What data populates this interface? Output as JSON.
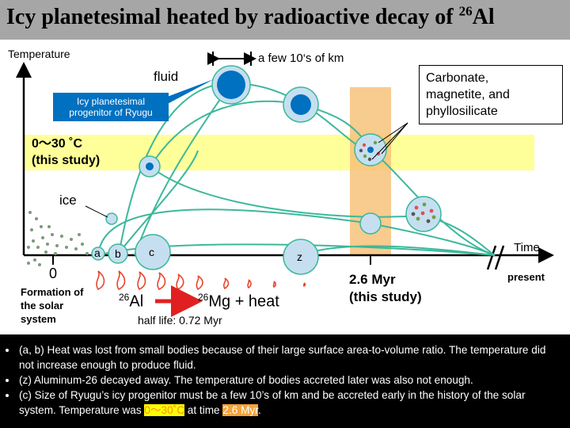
{
  "title": {
    "prefix": "Icy planetesimal heated by radioactive decay of ",
    "isotope_mass": "26",
    "isotope_symbol": "Al"
  },
  "axes": {
    "y_label": "Temperature",
    "x_label": "Time",
    "origin_label": "0",
    "origin_caption_line1": "Formation of",
    "origin_caption_line2": "the solar",
    "origin_caption_line3": "system",
    "present_label": "present",
    "time_marker_line1": "2.6 Myr",
    "time_marker_line2": "(this study)"
  },
  "labels": {
    "fluid": "fluid",
    "ice": "ice",
    "size_scale": "a few 10‘s of km",
    "temp_band_line1": "0～30 ˚C",
    "temp_band_line2": "(this study)",
    "ryugu_line1": "Icy planetesimal",
    "ryugu_line2": "progenitor of Ryugu",
    "minerals_line1": "Carbonate,",
    "minerals_line2": "magnetite, and",
    "minerals_line3": "phyllosilicate",
    "body_a": "a",
    "body_b": "b",
    "body_c": "c",
    "body_z": "z"
  },
  "decay": {
    "al_mass": "26",
    "al_symbol": "Al",
    "mg_mass": "26",
    "mg_symbol": "Mg + heat",
    "half_life": "half life: 0.72 Myr"
  },
  "notes": {
    "n1": "(a, b) Heat was lost from small bodies because of their large surface area-to-volume ratio. The temperature did not increase enough to produce fluid.",
    "n2": "(z) Aluminum-26 decayed away. The temperature of bodies accreted later was also not enough.",
    "n3_before": "(c) Size of Ryugu’s icy progenitor must be a few 10’s of km and be accreted early in the history of the solar system. Temperature was ",
    "n3_temp": "0～30˚C",
    "n3_mid": " at time ",
    "n3_time": "2.6 Myr",
    "n3_end": "."
  },
  "colors": {
    "curve": "#3cb89b",
    "fluid_blue": "#0070c0",
    "body_fill": "#c5dff0",
    "band_yellow": "#ffff99",
    "band_orange": "#f7c27a",
    "flame": "#e8452c"
  }
}
